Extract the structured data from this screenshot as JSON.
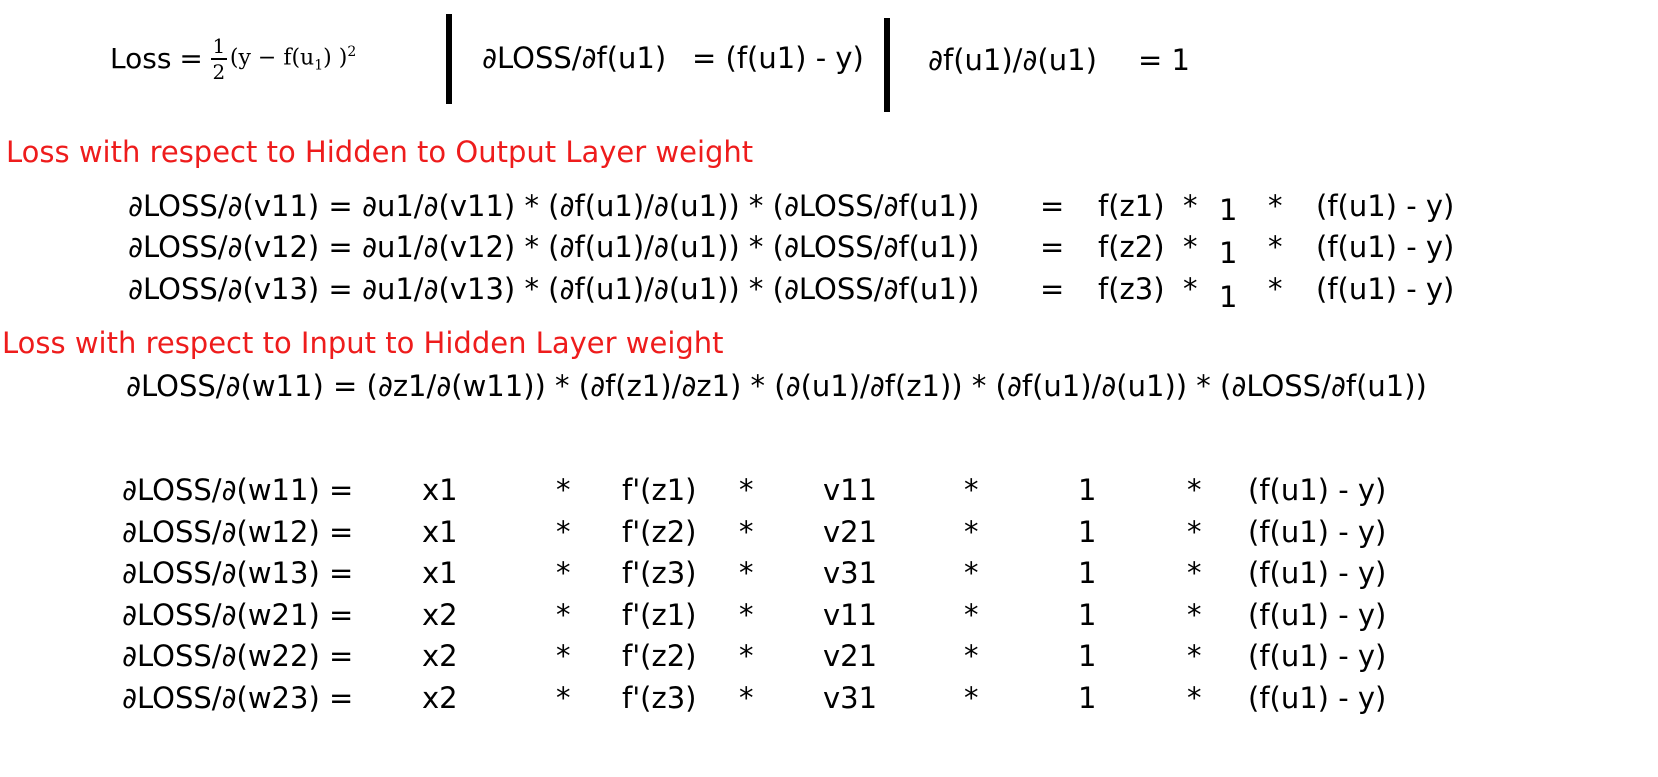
{
  "top": {
    "loss_label": "Loss",
    "loss_equals": "=",
    "loss_numerator": "1",
    "loss_denominator": "2",
    "loss_body_pre": "(y − f(u",
    "loss_body_sub": "1",
    "loss_body_post": ") )",
    "loss_body_exp": "2",
    "dloss_df": "∂LOSS/∂f(u1)",
    "dloss_df_value": "= (f(u1) - y)",
    "df_du": "∂f(u1)/∂(u1)",
    "df_du_value": "= 1",
    "divider_color": "#000000"
  },
  "section1": {
    "heading": "Loss with respect to Hidden to Output Layer weight",
    "heading_color": "#ee1c1c",
    "rows": [
      {
        "lhs": "∂LOSS/∂(v11) = ∂u1/∂(v11) * (∂f(u1)/∂(u1)) * (∂LOSS/∂f(u1))",
        "eq": "=",
        "t1": "f(z1)",
        "m1": "*",
        "t2": "1",
        "m2": "*",
        "t3": "(f(u1) - y)"
      },
      {
        "lhs": "∂LOSS/∂(v12) = ∂u1/∂(v12) * (∂f(u1)/∂(u1)) * (∂LOSS/∂f(u1))",
        "eq": "=",
        "t1": "f(z2)",
        "m1": "*",
        "t2": "1",
        "m2": "*",
        "t3": "(f(u1) - y)"
      },
      {
        "lhs": "∂LOSS/∂(v13) = ∂u1/∂(v13) * (∂f(u1)/∂(u1)) * (∂LOSS/∂f(u1))",
        "eq": "=",
        "t1": "f(z3)",
        "m1": "*",
        "t2": "1",
        "m2": "*",
        "t3": "(f(u1) - y)"
      }
    ]
  },
  "section2": {
    "heading": "Loss with respect to Input to Hidden Layer weight",
    "heading_color": "#ee1c1c",
    "chain": "∂LOSS/∂(w11) = (∂z1/∂(w11)) * (∂f(z1)/∂z1) * (∂(u1)/∂f(z1)) * (∂f(u1)/∂(u1)) * (∂LOSS/∂f(u1))",
    "rows": [
      {
        "lhs": "∂LOSS/∂(w11) =",
        "x": "x1",
        "m1": "*",
        "fp": "f'(z1)",
        "m2": "*",
        "v": "v11",
        "m3": "*",
        "one": "1",
        "m4": "*",
        "tail": "(f(u1) - y)"
      },
      {
        "lhs": "∂LOSS/∂(w12) =",
        "x": "x1",
        "m1": "*",
        "fp": "f'(z2)",
        "m2": "*",
        "v": "v21",
        "m3": "*",
        "one": "1",
        "m4": "*",
        "tail": "(f(u1) - y)"
      },
      {
        "lhs": "∂LOSS/∂(w13) =",
        "x": "x1",
        "m1": "*",
        "fp": "f'(z3)",
        "m2": "*",
        "v": "v31",
        "m3": "*",
        "one": "1",
        "m4": "*",
        "tail": "(f(u1) - y)"
      },
      {
        "lhs": "∂LOSS/∂(w21) =",
        "x": "x2",
        "m1": "*",
        "fp": "f'(z1)",
        "m2": "*",
        "v": "v11",
        "m3": "*",
        "one": "1",
        "m4": "*",
        "tail": "(f(u1) - y)"
      },
      {
        "lhs": "∂LOSS/∂(w22) =",
        "x": "x2",
        "m1": "*",
        "fp": "f'(z2)",
        "m2": "*",
        "v": "v21",
        "m3": "*",
        "one": "1",
        "m4": "*",
        "tail": "(f(u1) - y)"
      },
      {
        "lhs": "∂LOSS/∂(w23) =",
        "x": "x2",
        "m1": "*",
        "fp": "f'(z3)",
        "m2": "*",
        "v": "v31",
        "m3": "*",
        "one": "1",
        "m4": "*",
        "tail": "(f(u1) - y)"
      }
    ]
  }
}
